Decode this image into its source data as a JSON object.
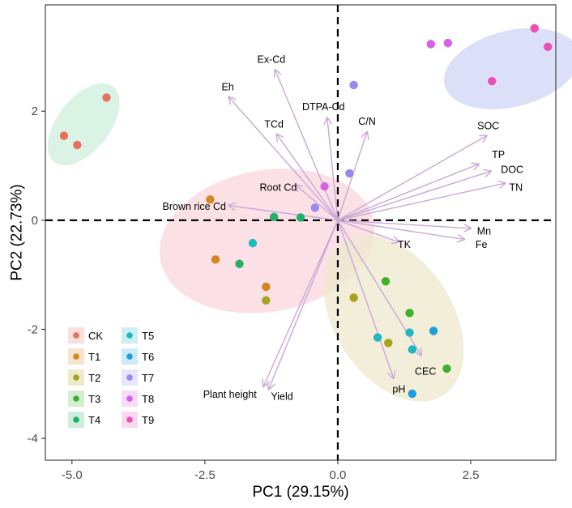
{
  "chart_data": {
    "type": "scatter",
    "xlabel": "PC1 (29.15%)",
    "ylabel": "PC2 (22.73%)",
    "xlim": [
      -5.5,
      4.1
    ],
    "ylim": [
      -4.4,
      3.95
    ],
    "xticks": [
      {
        "value": -5.0,
        "label": "-5.0"
      },
      {
        "value": -2.5,
        "label": "-2.5"
      },
      {
        "value": 0.0,
        "label": "0.0"
      },
      {
        "value": 2.5,
        "label": "2.5"
      }
    ],
    "yticks": [
      {
        "value": -4,
        "label": "-4"
      },
      {
        "value": -2,
        "label": "-2"
      },
      {
        "value": 0,
        "label": "0"
      },
      {
        "value": 2,
        "label": "2"
      }
    ],
    "grid": false,
    "reference_lines": {
      "x": 0,
      "y": 0,
      "style": "dashed"
    },
    "groups": [
      {
        "name": "CK",
        "color": "#E8705F",
        "points": [
          [
            -5.15,
            1.55
          ],
          [
            -4.9,
            1.38
          ],
          [
            -4.35,
            2.25
          ]
        ],
        "ellipse": {
          "cx": -4.78,
          "cy": 1.76,
          "rx": 0.9,
          "ry": 0.48,
          "angle": 52,
          "fill": "#CDEFDC"
        }
      },
      {
        "name": "T1",
        "color": "#D4861F",
        "points": [
          [
            -2.4,
            0.38
          ],
          [
            -2.3,
            -0.72
          ],
          [
            -1.35,
            -1.22
          ]
        ]
      },
      {
        "name": "T2",
        "color": "#A3A31C",
        "points": [
          [
            -1.35,
            -1.47
          ],
          [
            0.3,
            -1.42
          ],
          [
            0.95,
            -2.25
          ]
        ]
      },
      {
        "name": "T3",
        "color": "#3FB02E",
        "points": [
          [
            0.9,
            -1.12
          ],
          [
            1.35,
            -1.7
          ],
          [
            2.05,
            -2.72
          ]
        ]
      },
      {
        "name": "T4",
        "color": "#22B06A",
        "points": [
          [
            -1.2,
            0.06
          ],
          [
            -0.7,
            0.05
          ],
          [
            -1.85,
            -0.8
          ]
        ]
      },
      {
        "name": "T5",
        "color": "#1FB8C2",
        "points": [
          [
            -1.6,
            -0.42
          ],
          [
            0.75,
            -2.15
          ],
          [
            1.35,
            -2.06
          ],
          [
            1.4,
            -2.37
          ]
        ]
      },
      {
        "name": "T6",
        "color": "#1E9FD9",
        "points": [
          [
            1.8,
            -2.03
          ],
          [
            1.4,
            -3.18
          ]
        ]
      },
      {
        "name": "T7",
        "color": "#9B87F0",
        "points": [
          [
            0.3,
            2.48
          ],
          [
            0.22,
            0.86
          ],
          [
            -0.43,
            0.23
          ]
        ]
      },
      {
        "name": "T8",
        "color": "#D85FEA",
        "points": [
          [
            1.75,
            3.23
          ],
          [
            2.07,
            3.25
          ],
          [
            -0.25,
            0.62
          ]
        ]
      },
      {
        "name": "T9",
        "color": "#EC4FB4",
        "points": [
          [
            3.7,
            3.52
          ],
          [
            3.95,
            3.18
          ],
          [
            2.9,
            2.55
          ]
        ]
      }
    ],
    "ellipses": [
      {
        "cx": 3.27,
        "cy": 2.78,
        "rx": 1.3,
        "ry": 0.7,
        "angle": 14,
        "fill": "#CFD5F5"
      },
      {
        "cx": -1.33,
        "cy": -0.38,
        "rx": 2.04,
        "ry": 1.3,
        "angle": 10,
        "fill": "#FAD7DE"
      },
      {
        "cx": 1.05,
        "cy": -1.8,
        "rx": 1.72,
        "ry": 1.08,
        "angle": -57,
        "fill": "#EDE8CD"
      }
    ],
    "loadings": [
      {
        "label": "Ex-Cd",
        "x": -1.18,
        "y": 2.76,
        "label_x": -1.25,
        "label_y": 2.95
      },
      {
        "label": "Eh",
        "x": -2.05,
        "y": 2.26,
        "label_x": -2.07,
        "label_y": 2.44
      },
      {
        "label": "DTPA-Cd",
        "x": -0.2,
        "y": 1.88,
        "label_x": -0.27,
        "label_y": 2.08
      },
      {
        "label": "TCd",
        "x": -1.15,
        "y": 1.58,
        "label_x": -1.2,
        "label_y": 1.76
      },
      {
        "label": "C/N",
        "x": 0.55,
        "y": 1.62,
        "label_x": 0.55,
        "label_y": 1.81
      },
      {
        "label": "SOC",
        "x": 2.8,
        "y": 1.55,
        "label_x": 2.83,
        "label_y": 1.73
      },
      {
        "label": "TP",
        "x": 2.65,
        "y": 1.03,
        "label_x": 3.02,
        "label_y": 1.2
      },
      {
        "label": "DOC",
        "x": 2.88,
        "y": 0.9,
        "label_x": 3.28,
        "label_y": 0.93
      },
      {
        "label": "TN",
        "x": 3.15,
        "y": 0.68,
        "label_x": 3.35,
        "label_y": 0.6
      },
      {
        "label": "Root Cd",
        "x": -0.8,
        "y": 0.65,
        "label_x": -1.12,
        "label_y": 0.6
      },
      {
        "label": "Brown rice Cd",
        "x": -2.05,
        "y": 0.27,
        "label_x": -2.7,
        "label_y": 0.25
      },
      {
        "label": "Mn",
        "x": 2.5,
        "y": -0.15,
        "label_x": 2.75,
        "label_y": -0.2
      },
      {
        "label": "Fe",
        "x": 2.38,
        "y": -0.35,
        "label_x": 2.7,
        "label_y": -0.45
      },
      {
        "label": "TK",
        "x": 1.15,
        "y": -0.4,
        "label_x": 1.25,
        "label_y": -0.45
      },
      {
        "label": "CEC",
        "x": 1.57,
        "y": -2.48,
        "label_x": 1.65,
        "label_y": -2.77
      },
      {
        "label": "pH",
        "x": 1.05,
        "y": -2.9,
        "label_x": 1.15,
        "label_y": -3.1
      },
      {
        "label": "Plant height",
        "x": -1.4,
        "y": -3.05,
        "label_x": -2.03,
        "label_y": -3.2
      },
      {
        "label": "Yield",
        "x": -1.3,
        "y": -3.1,
        "label_x": -1.05,
        "label_y": -3.23
      }
    ],
    "loading_color": "#C9A8D6",
    "legend": {
      "position": "bottom-left",
      "columns": [
        [
          "CK",
          "T1",
          "T2",
          "T3",
          "T4"
        ],
        [
          "T5",
          "T6",
          "T7",
          "T8",
          "T9"
        ]
      ]
    }
  }
}
